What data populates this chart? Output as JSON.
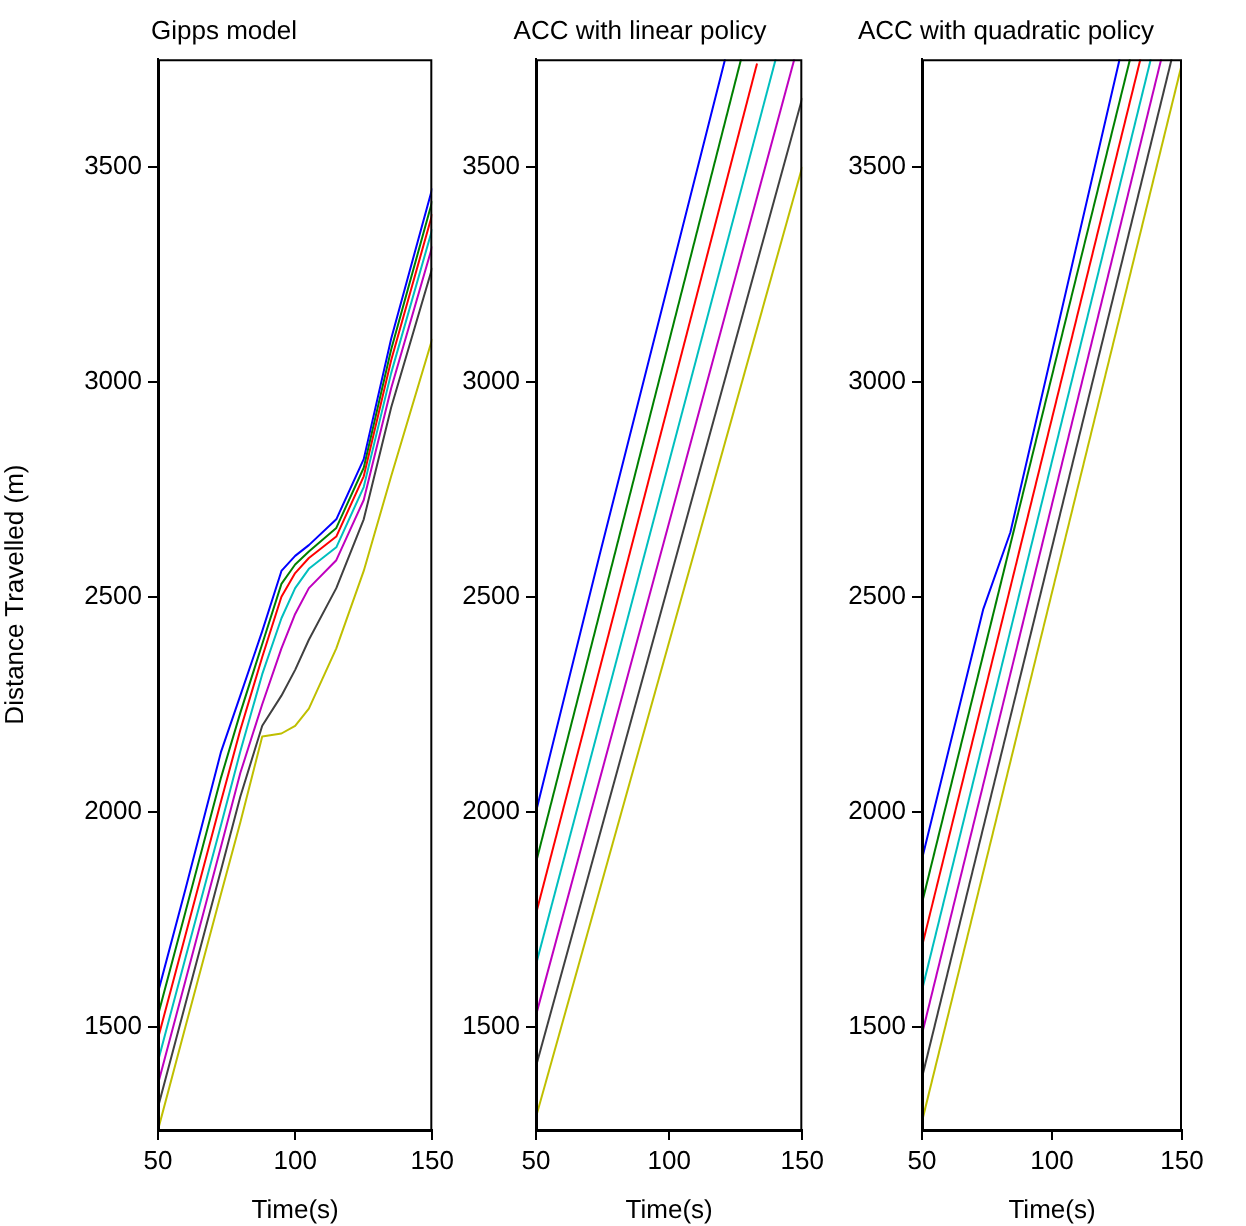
{
  "chart_data": [
    {
      "type": "line",
      "title": "Gipps model",
      "xlabel": "Time(s)",
      "ylabel": "Distance Travelled (m)",
      "xlim": [
        50,
        150
      ],
      "xticks": [
        50,
        100,
        150
      ],
      "ylim": [
        1260,
        3750
      ],
      "yticks": [
        1500,
        2000,
        2500,
        3000,
        3500
      ],
      "grid": false,
      "marker": "none",
      "line_style": "solid",
      "series": [
        {
          "color": "#0000ff",
          "x": [
            50,
            60,
            73,
            80,
            88,
            95,
            100,
            105,
            115,
            125,
            135,
            150
          ],
          "values": [
            1580,
            1820,
            2140,
            2270,
            2420,
            2560,
            2595,
            2620,
            2680,
            2820,
            3100,
            3450
          ]
        },
        {
          "color": "#008000",
          "x": [
            50,
            60,
            73,
            80,
            88,
            95,
            100,
            105,
            115,
            125,
            135,
            150
          ],
          "values": [
            1527,
            1767,
            2080,
            2230,
            2390,
            2530,
            2575,
            2605,
            2660,
            2800,
            3075,
            3420
          ]
        },
        {
          "color": "#ff0000",
          "x": [
            50,
            60,
            73,
            80,
            88,
            95,
            100,
            105,
            115,
            125,
            135,
            150
          ],
          "values": [
            1473,
            1713,
            2025,
            2190,
            2360,
            2500,
            2555,
            2590,
            2640,
            2780,
            3050,
            3390
          ]
        },
        {
          "color": "#00bfbf",
          "x": [
            50,
            60,
            73,
            80,
            88,
            95,
            100,
            105,
            115,
            125,
            135,
            150
          ],
          "values": [
            1420,
            1660,
            1970,
            2140,
            2320,
            2450,
            2520,
            2565,
            2615,
            2755,
            3020,
            3355
          ]
        },
        {
          "color": "#bf00bf",
          "x": [
            50,
            60,
            73,
            80,
            88,
            95,
            100,
            105,
            115,
            125,
            135,
            150
          ],
          "values": [
            1367,
            1607,
            1920,
            2090,
            2250,
            2380,
            2460,
            2520,
            2585,
            2725,
            2985,
            3315
          ]
        },
        {
          "color": "#404040",
          "x": [
            50,
            60,
            73,
            80,
            88,
            95,
            100,
            105,
            115,
            125,
            135,
            150
          ],
          "values": [
            1313,
            1553,
            1865,
            2035,
            2200,
            2270,
            2330,
            2400,
            2520,
            2680,
            2940,
            3265
          ]
        },
        {
          "color": "#bfbf00",
          "x": [
            50,
            60,
            73,
            80,
            88,
            95,
            100,
            105,
            115,
            125,
            135,
            150
          ],
          "values": [
            1260,
            1500,
            1810,
            1975,
            2175,
            2182,
            2200,
            2240,
            2380,
            2560,
            2780,
            3100
          ]
        }
      ]
    },
    {
      "type": "line",
      "title": "ACC with linear policy",
      "xlabel": "Time(s)",
      "xlim": [
        50,
        150
      ],
      "xticks": [
        50,
        100,
        150
      ],
      "ylim": [
        1260,
        3750
      ],
      "yticks": [
        1500,
        2000,
        2500,
        3000,
        3500
      ],
      "grid": false,
      "marker": "none",
      "line_style": "solid",
      "series": [
        {
          "color": "#0000ff",
          "x": [
            50,
            74,
            121
          ],
          "values": [
            2000,
            2600,
            3750
          ]
        },
        {
          "color": "#008000",
          "x": [
            50,
            127
          ],
          "values": [
            1882,
            3750
          ]
        },
        {
          "color": "#ff0000",
          "x": [
            50,
            133
          ],
          "values": [
            1763,
            3740
          ]
        },
        {
          "color": "#00bfbf",
          "x": [
            50,
            140
          ],
          "values": [
            1645,
            3750
          ]
        },
        {
          "color": "#bf00bf",
          "x": [
            50,
            147
          ],
          "values": [
            1527,
            3750
          ]
        },
        {
          "color": "#404040",
          "x": [
            50,
            150
          ],
          "values": [
            1408,
            3660
          ]
        },
        {
          "color": "#bfbf00",
          "x": [
            50,
            150
          ],
          "values": [
            1290,
            3500
          ]
        }
      ]
    },
    {
      "type": "line",
      "title": "ACC with quadratic policy",
      "xlabel": "Time(s)",
      "xlim": [
        50,
        150
      ],
      "xticks": [
        50,
        100,
        150
      ],
      "ylim": [
        1260,
        3750
      ],
      "yticks": [
        1500,
        2000,
        2500,
        3000,
        3500
      ],
      "grid": false,
      "marker": "none",
      "line_style": "solid",
      "series": [
        {
          "color": "#0000ff",
          "x": [
            50,
            73.5,
            84,
            126
          ],
          "values": [
            1890,
            2470,
            2650,
            3750
          ]
        },
        {
          "color": "#008000",
          "x": [
            50,
            130
          ],
          "values": [
            1788,
            3750
          ]
        },
        {
          "color": "#ff0000",
          "x": [
            50,
            134
          ],
          "values": [
            1687,
            3750
          ]
        },
        {
          "color": "#00bfbf",
          "x": [
            50,
            138
          ],
          "values": [
            1585,
            3750
          ]
        },
        {
          "color": "#bf00bf",
          "x": [
            50,
            142
          ],
          "values": [
            1483,
            3750
          ]
        },
        {
          "color": "#404040",
          "x": [
            50,
            146
          ],
          "values": [
            1382,
            3750
          ]
        },
        {
          "color": "#bfbf00",
          "x": [
            50,
            150
          ],
          "values": [
            1280,
            3740
          ]
        }
      ]
    }
  ]
}
